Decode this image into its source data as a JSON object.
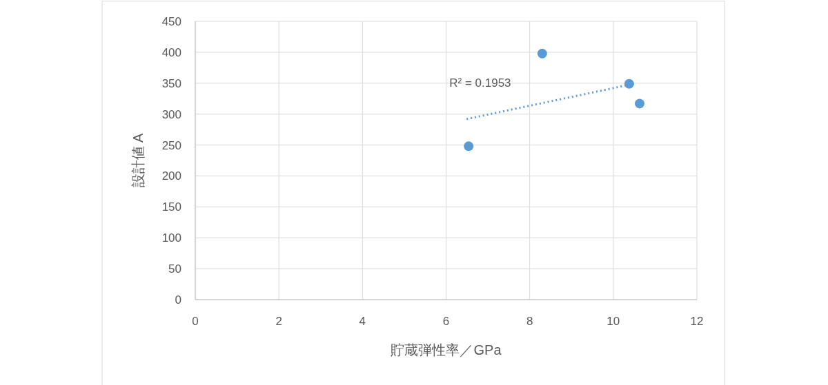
{
  "chart_data": {
    "type": "scatter",
    "xlabel": "貯蔵弾性率／GPa",
    "ylabel": "設計値 A",
    "xlim": [
      0,
      12
    ],
    "xticks": [
      0,
      2,
      4,
      6,
      8,
      10,
      12
    ],
    "ylim": [
      0,
      450
    ],
    "yticks": [
      0,
      50,
      100,
      150,
      200,
      250,
      300,
      350,
      400,
      450
    ],
    "grid": true,
    "marker": "circle",
    "series": [
      {
        "type": "scatter",
        "color": "#5b9bd5",
        "x": [
          6.54,
          8.3,
          10.38,
          10.63
        ],
        "values": [
          248,
          398,
          349,
          317
        ]
      },
      {
        "type": "line",
        "line_style": "dotted",
        "marker": "none",
        "color": "#5b9bd5",
        "x": [
          6.49,
          10.56
        ],
        "values": [
          292,
          350
        ]
      }
    ],
    "annotations": [
      "R² = 0.1953"
    ]
  }
}
